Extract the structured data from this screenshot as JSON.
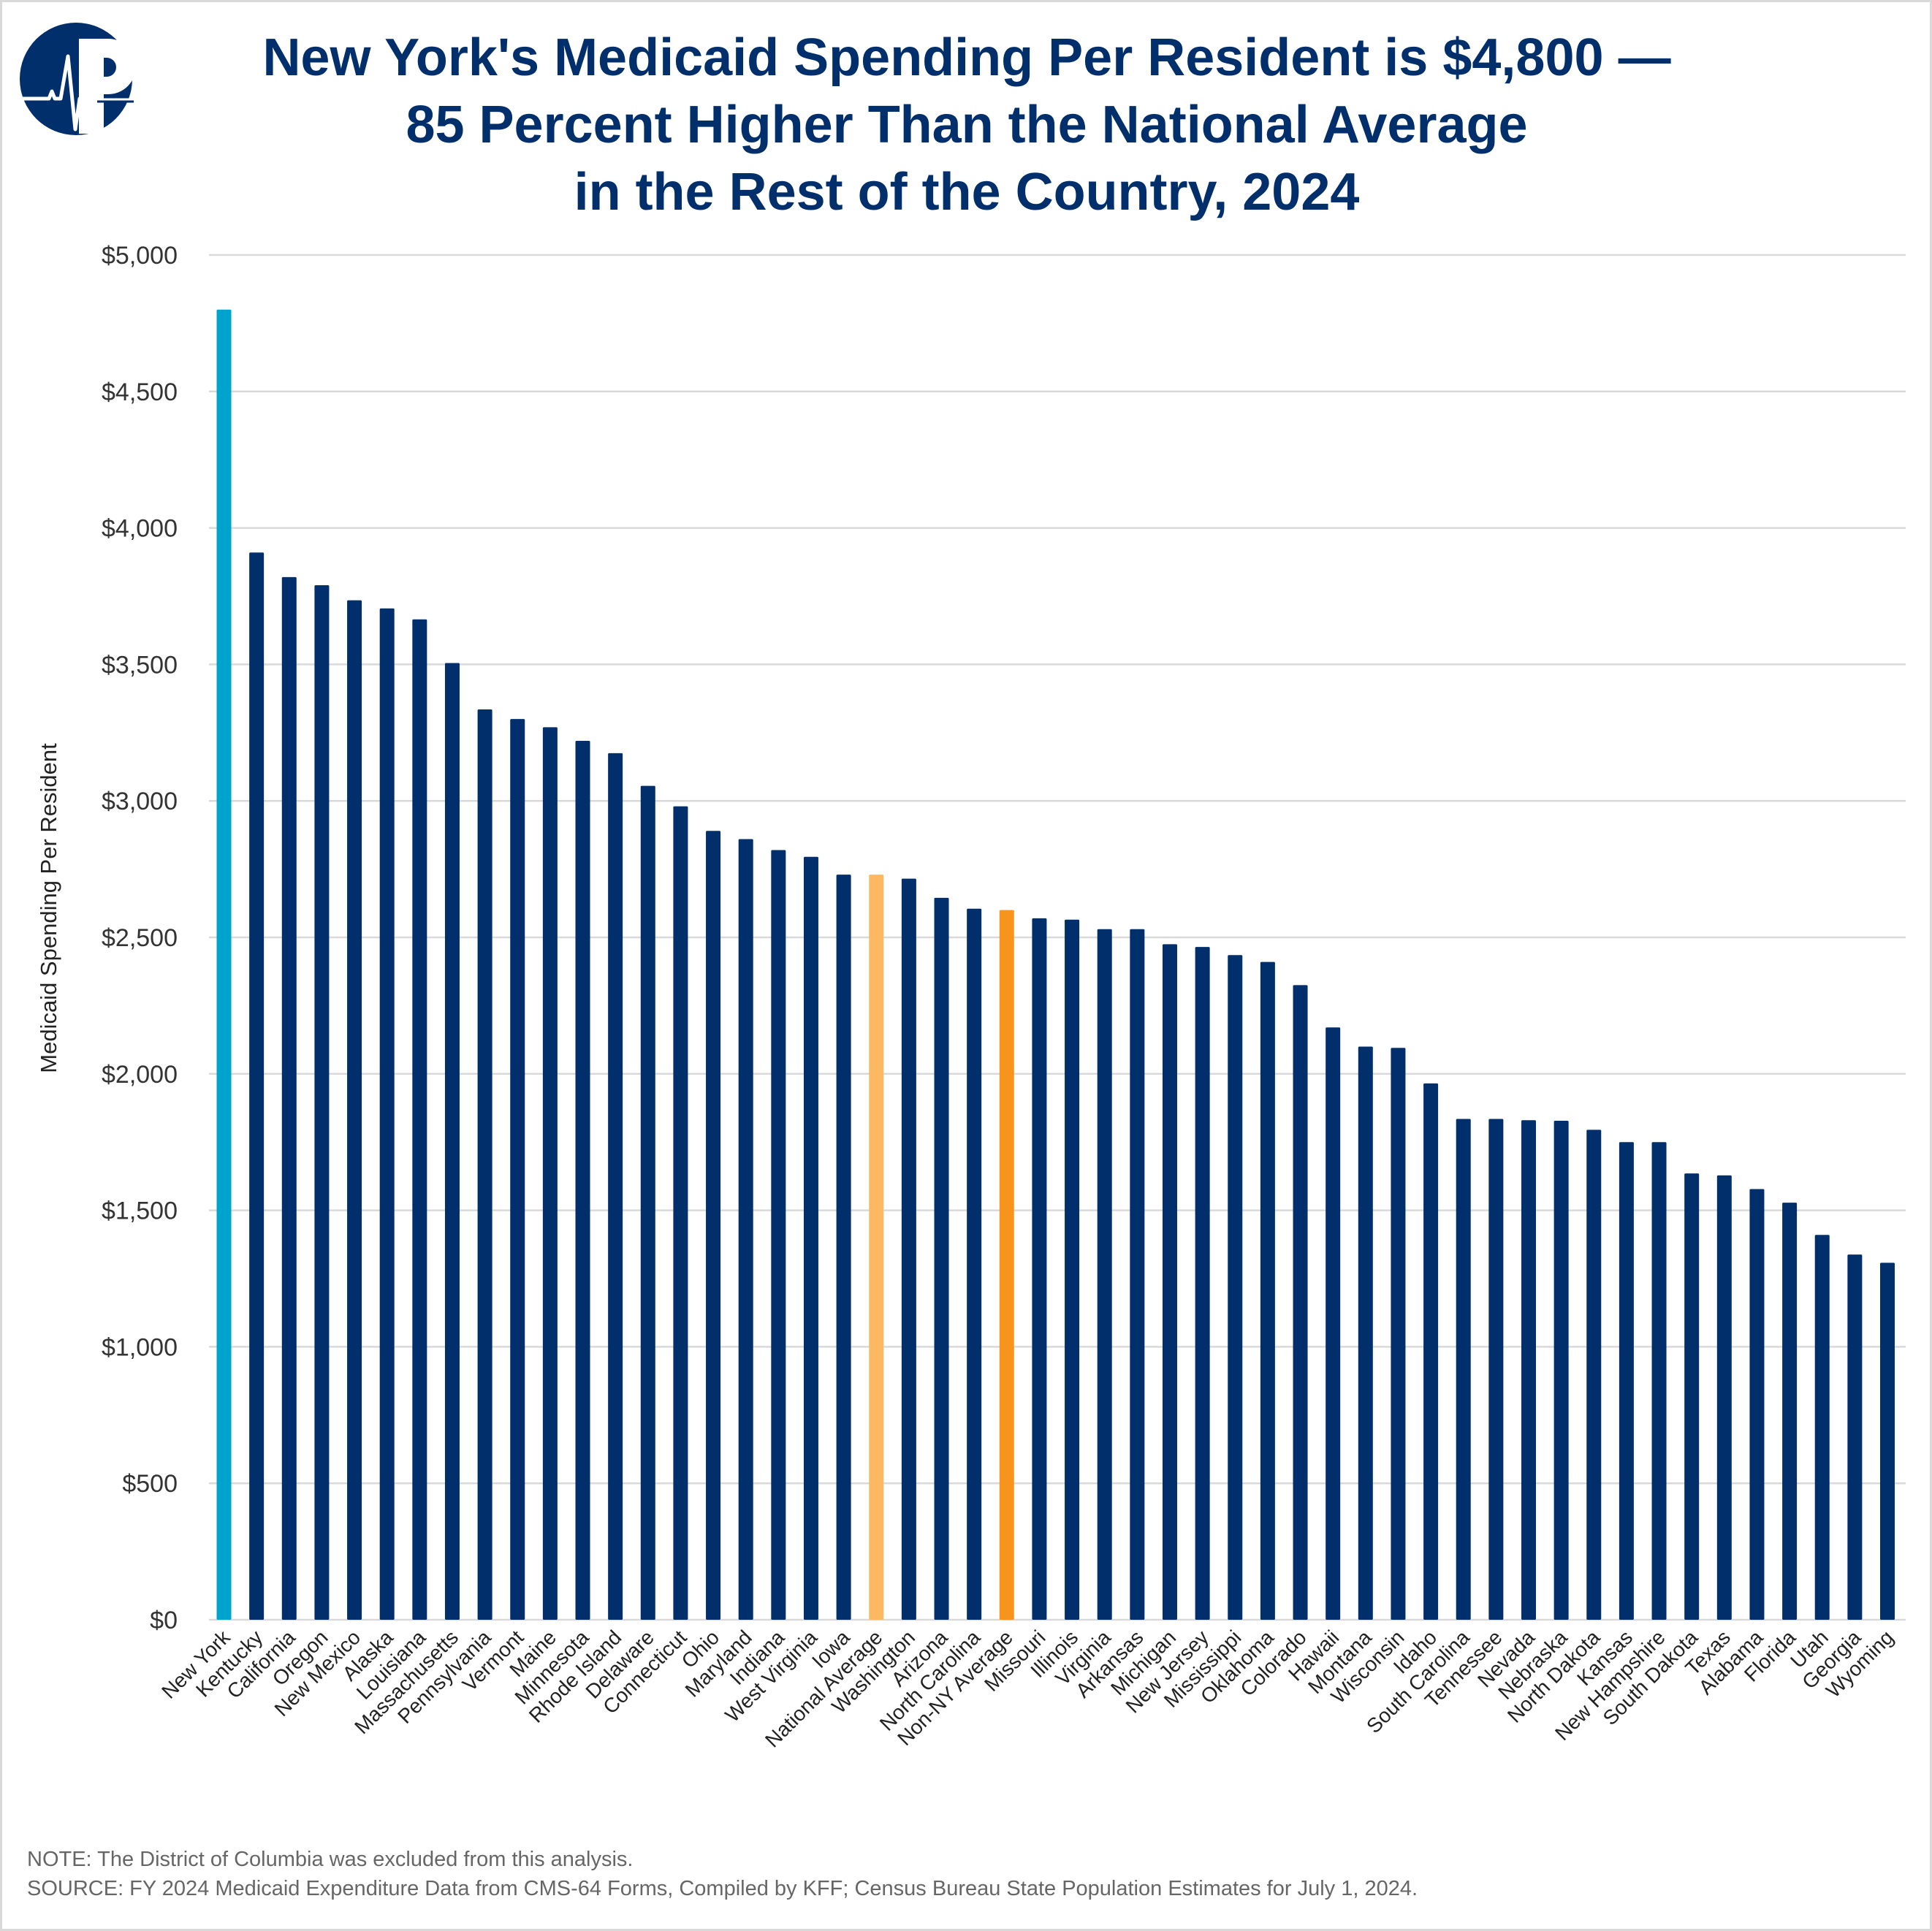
{
  "title_lines": [
    "New York's Medicaid Spending Per Resident is $4,800 —",
    "85 Percent Higher Than the National Average",
    "in the Rest of the Country, 2024"
  ],
  "logo_text": "P",
  "footer": {
    "note": "NOTE: The District of Columbia was excluded from this analysis.",
    "source": "SOURCE: FY 2024 Medicaid Expenditure Data from CMS-64 Forms, Compiled by KFF; Census Bureau State Population Estimates for July 1, 2024."
  },
  "colors": {
    "default": "#002F6C",
    "highlight": "#00A3CC",
    "national_average": "#FDB863",
    "non_ny_average": "#F7941D",
    "grid": "#d9d9d9"
  },
  "chart_data": {
    "type": "bar",
    "title": "New York's Medicaid Spending Per Resident is $4,800 — 85 Percent Higher Than the National Average in the Rest of the Country, 2024",
    "xlabel": "",
    "ylabel": "Medicaid Spending Per Resident",
    "ylim": [
      0,
      5000
    ],
    "yticks": [
      0,
      500,
      1000,
      1500,
      2000,
      2500,
      3000,
      3500,
      4000,
      4500,
      5000
    ],
    "ytick_labels": [
      "$0",
      "$500",
      "$1,000",
      "$1,500",
      "$2,000",
      "$2,500",
      "$3,000",
      "$3,500",
      "$4,000",
      "$4,500",
      "$5,000"
    ],
    "grid": true,
    "categories": [
      "New York",
      "Kentucky",
      "California",
      "Oregon",
      "New Mexico",
      "Alaska",
      "Louisiana",
      "Massachusetts",
      "Pennsylvania",
      "Vermont",
      "Maine",
      "Minnesota",
      "Rhode Island",
      "Delaware",
      "Connecticut",
      "Ohio",
      "Maryland",
      "Indiana",
      "West Virginia",
      "Iowa",
      "National Average",
      "Washington",
      "Arizona",
      "North Carolina",
      "Non-NY Average",
      "Missouri",
      "Illinois",
      "Virginia",
      "Arkansas",
      "Michigan",
      "New Jersey",
      "Mississippi",
      "Oklahoma",
      "Colorado",
      "Hawaii",
      "Montana",
      "Wisconsin",
      "Idaho",
      "South Carolina",
      "Tennessee",
      "Nevada",
      "Nebraska",
      "North Dakota",
      "Kansas",
      "New Hampshire",
      "South Dakota",
      "Texas",
      "Alabama",
      "Florida",
      "Utah",
      "Georgia",
      "Wyoming"
    ],
    "values": [
      4800,
      3910,
      3820,
      3790,
      3735,
      3705,
      3665,
      3505,
      3335,
      3300,
      3270,
      3220,
      3175,
      3055,
      2980,
      2890,
      2860,
      2820,
      2795,
      2730,
      2730,
      2715,
      2645,
      2605,
      2600,
      2570,
      2565,
      2530,
      2530,
      2475,
      2465,
      2435,
      2410,
      2325,
      2170,
      2100,
      2095,
      1965,
      1835,
      1835,
      1830,
      1828,
      1795,
      1750,
      1750,
      1635,
      1628,
      1578,
      1528,
      1410,
      1338,
      1308
    ],
    "highlights": {
      "New York": "highlight",
      "National Average": "national_average",
      "Non-NY Average": "non_ny_average"
    }
  }
}
